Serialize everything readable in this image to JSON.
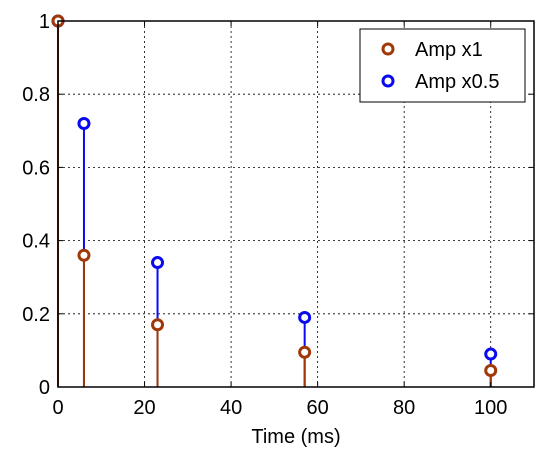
{
  "chart_data": {
    "type": "stem",
    "title": "",
    "xlabel": "Time (ms)",
    "ylabel": "",
    "xlim": [
      0,
      110
    ],
    "ylim": [
      0,
      1
    ],
    "xticks": [
      0,
      20,
      40,
      60,
      80,
      100
    ],
    "yticks": [
      0,
      0.2,
      0.4,
      0.6,
      0.8,
      1
    ],
    "xtick_labels": [
      "0",
      "20",
      "40",
      "60",
      "80",
      "100"
    ],
    "ytick_labels": [
      "0",
      "0.2",
      "0.4",
      "0.6",
      "0.8",
      "1"
    ],
    "grid": true,
    "legend_position": "top-right",
    "series": [
      {
        "name": "Amp x1",
        "color": "#a0380a",
        "x": [
          0,
          6,
          23,
          57,
          100
        ],
        "y": [
          1.0,
          0.36,
          0.17,
          0.095,
          0.045
        ]
      },
      {
        "name": "Amp x0.5",
        "color": "#0a0af0",
        "x": [
          0,
          6,
          23,
          57,
          100
        ],
        "y": [
          1.0,
          0.72,
          0.34,
          0.19,
          0.09
        ]
      }
    ]
  }
}
